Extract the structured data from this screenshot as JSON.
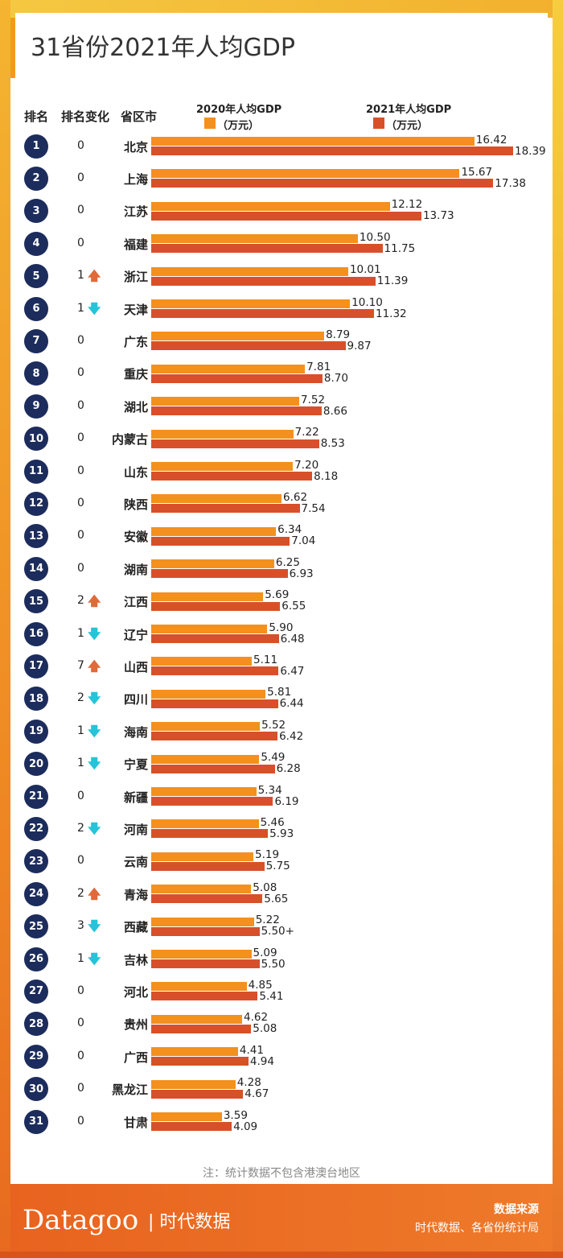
{
  "title": "31省份2021年人均GDP",
  "headers": {
    "rank": "排名",
    "change": "排名变化",
    "province": "省区市"
  },
  "note": "注：统计数据不包含港澳台地区",
  "footer": {
    "brand": "Datagoo",
    "brand_cn": "| 时代数据",
    "source_title": "数据来源",
    "source_text": "时代数据、各省份统计局"
  },
  "chart_data": {
    "type": "bar",
    "orientation": "horizontal",
    "title": "31省份2021年人均GDP",
    "colors": {
      "2020": "#f4901e",
      "2021": "#d8502a",
      "up_arrow": "#e06a3a",
      "down_arrow": "#25c4d8",
      "rank_circle": "#1c2c5c"
    },
    "legend": [
      {
        "label": "2020年人均GDP",
        "unit": "（万元）"
      },
      {
        "label": "2021年人均GDP",
        "unit": "（万元）"
      }
    ],
    "rows": [
      {
        "rank": "1",
        "change": "0",
        "dir": "",
        "province": "北京",
        "v2020": 16.42,
        "v2021": 18.39,
        "l2021": "18.39"
      },
      {
        "rank": "2",
        "change": "0",
        "dir": "",
        "province": "上海",
        "v2020": 15.67,
        "v2021": 17.38,
        "l2021": "17.38"
      },
      {
        "rank": "3",
        "change": "0",
        "dir": "",
        "province": "江苏",
        "v2020": 12.12,
        "v2021": 13.73,
        "l2021": "13.73"
      },
      {
        "rank": "4",
        "change": "0",
        "dir": "",
        "province": "福建",
        "v2020": 10.5,
        "v2021": 11.75,
        "l2021": "11.75"
      },
      {
        "rank": "5",
        "change": "1",
        "dir": "up",
        "province": "浙江",
        "v2020": 10.01,
        "v2021": 11.39,
        "l2021": "11.39"
      },
      {
        "rank": "6",
        "change": "1",
        "dir": "down",
        "province": "天津",
        "v2020": 10.1,
        "v2021": 11.32,
        "l2021": "11.32"
      },
      {
        "rank": "7",
        "change": "0",
        "dir": "",
        "province": "广东",
        "v2020": 8.79,
        "v2021": 9.87,
        "l2021": "9.87"
      },
      {
        "rank": "8",
        "change": "0",
        "dir": "",
        "province": "重庆",
        "v2020": 7.81,
        "v2021": 8.7,
        "l2021": "8.70"
      },
      {
        "rank": "9",
        "change": "0",
        "dir": "",
        "province": "湖北",
        "v2020": 7.52,
        "v2021": 8.66,
        "l2021": "8.66"
      },
      {
        "rank": "10",
        "change": "0",
        "dir": "",
        "province": "内蒙古",
        "v2020": 7.22,
        "v2021": 8.53,
        "l2021": "8.53"
      },
      {
        "rank": "11",
        "change": "0",
        "dir": "",
        "province": "山东",
        "v2020": 7.2,
        "v2021": 8.18,
        "l2021": "8.18"
      },
      {
        "rank": "12",
        "change": "0",
        "dir": "",
        "province": "陕西",
        "v2020": 6.62,
        "v2021": 7.54,
        "l2021": "7.54"
      },
      {
        "rank": "13",
        "change": "0",
        "dir": "",
        "province": "安徽",
        "v2020": 6.34,
        "v2021": 7.04,
        "l2021": "7.04"
      },
      {
        "rank": "14",
        "change": "0",
        "dir": "",
        "province": "湖南",
        "v2020": 6.25,
        "v2021": 6.93,
        "l2021": "6.93"
      },
      {
        "rank": "15",
        "change": "2",
        "dir": "up",
        "province": "江西",
        "v2020": 5.69,
        "v2021": 6.55,
        "l2021": "6.55"
      },
      {
        "rank": "16",
        "change": "1",
        "dir": "down",
        "province": "辽宁",
        "v2020": 5.9,
        "v2021": 6.48,
        "l2021": "6.48"
      },
      {
        "rank": "17",
        "change": "7",
        "dir": "up",
        "province": "山西",
        "v2020": 5.11,
        "v2021": 6.47,
        "l2021": "6.47"
      },
      {
        "rank": "18",
        "change": "2",
        "dir": "down",
        "province": "四川",
        "v2020": 5.81,
        "v2021": 6.44,
        "l2021": "6.44"
      },
      {
        "rank": "19",
        "change": "1",
        "dir": "down",
        "province": "海南",
        "v2020": 5.52,
        "v2021": 6.42,
        "l2021": "6.42"
      },
      {
        "rank": "20",
        "change": "1",
        "dir": "down",
        "province": "宁夏",
        "v2020": 5.49,
        "v2021": 6.28,
        "l2021": "6.28"
      },
      {
        "rank": "21",
        "change": "0",
        "dir": "",
        "province": "新疆",
        "v2020": 5.34,
        "v2021": 6.19,
        "l2021": "6.19"
      },
      {
        "rank": "22",
        "change": "2",
        "dir": "down",
        "province": "河南",
        "v2020": 5.46,
        "v2021": 5.93,
        "l2021": "5.93"
      },
      {
        "rank": "23",
        "change": "0",
        "dir": "",
        "province": "云南",
        "v2020": 5.19,
        "v2021": 5.75,
        "l2021": "5.75"
      },
      {
        "rank": "24",
        "change": "2",
        "dir": "up",
        "province": "青海",
        "v2020": 5.08,
        "v2021": 5.65,
        "l2021": "5.65"
      },
      {
        "rank": "25",
        "change": "3",
        "dir": "down",
        "province": "西藏",
        "v2020": 5.22,
        "v2021": 5.5,
        "l2021": "5.50+"
      },
      {
        "rank": "26",
        "change": "1",
        "dir": "down",
        "province": "吉林",
        "v2020": 5.09,
        "v2021": 5.5,
        "l2021": "5.50"
      },
      {
        "rank": "27",
        "change": "0",
        "dir": "",
        "province": "河北",
        "v2020": 4.85,
        "v2021": 5.41,
        "l2021": "5.41"
      },
      {
        "rank": "28",
        "change": "0",
        "dir": "",
        "province": "贵州",
        "v2020": 4.62,
        "v2021": 5.08,
        "l2021": "5.08"
      },
      {
        "rank": "29",
        "change": "0",
        "dir": "",
        "province": "广西",
        "v2020": 4.41,
        "v2021": 4.94,
        "l2021": "4.94"
      },
      {
        "rank": "30",
        "change": "0",
        "dir": "",
        "province": "黑龙江",
        "v2020": 4.28,
        "v2021": 4.67,
        "l2021": "4.67"
      },
      {
        "rank": "31",
        "change": "0",
        "dir": "",
        "province": "甘肃",
        "v2020": 3.59,
        "v2021": 4.09,
        "l2021": "4.09"
      }
    ]
  }
}
